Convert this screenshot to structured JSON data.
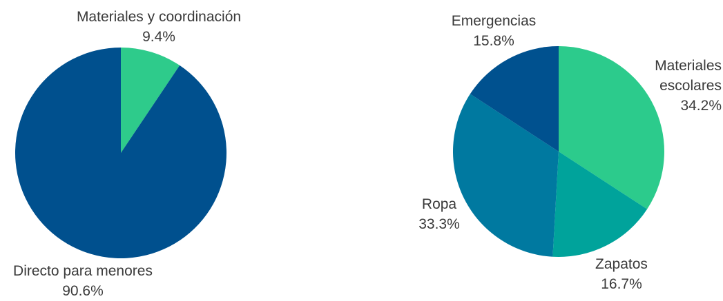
{
  "chart_data": [
    {
      "type": "pie",
      "categories": [
        "Materiales y coordinación",
        "Directo para menores"
      ],
      "values": [
        9.4,
        90.6
      ],
      "value_labels": [
        "9.4%",
        "90.6%"
      ],
      "colors": [
        "#2ecb8b",
        "#00508e"
      ]
    },
    {
      "type": "pie",
      "categories": [
        "Materiales escolares",
        "Zapatos",
        "Ropa",
        "Emergencias"
      ],
      "values": [
        34.2,
        16.7,
        33.3,
        15.8
      ],
      "value_labels": [
        "34.2%",
        "16.7%",
        "33.3%",
        "15.8%"
      ],
      "colors": [
        "#2ccb8c",
        "#00a39b",
        "#0079a0",
        "#00518f"
      ]
    }
  ]
}
